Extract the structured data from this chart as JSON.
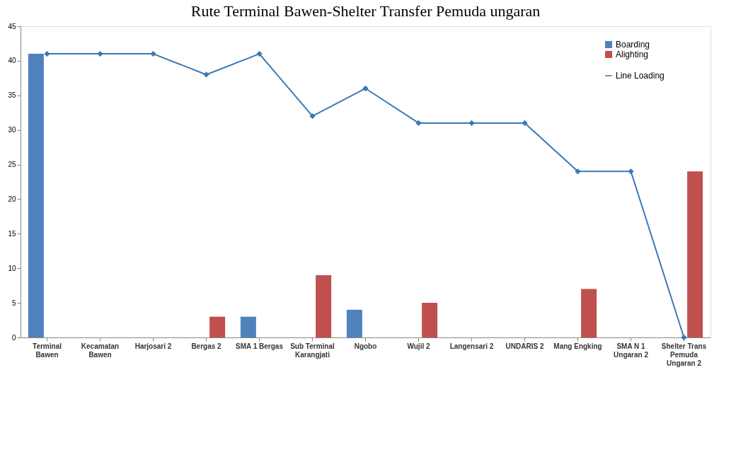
{
  "chart_data": {
    "type": "bar",
    "title": "Rute Terminal Bawen-Shelter Transfer Pemuda ungaran",
    "categories": [
      "Terminal\nBawen",
      "Kecamatan\nBawen",
      "Harjosari 2",
      "Bergas 2",
      "SMA 1 Bergas",
      "Sub Terminal\nKarangjati",
      "Ngobo",
      "Wujil 2",
      "Langensari 2",
      "UNDARIS 2",
      "Mang Engking",
      "SMA N 1\nUngaran 2",
      "Shelter Trans\nPemuda\nUngaran 2"
    ],
    "series": [
      {
        "name": "Boarding",
        "color": "#4f81bd",
        "values": [
          41,
          0,
          0,
          0,
          3,
          0,
          4,
          0,
          0,
          0,
          0,
          0,
          0
        ]
      },
      {
        "name": "Alighting",
        "color": "#c0504d",
        "values": [
          0,
          0,
          0,
          3,
          0,
          9,
          0,
          5,
          0,
          0,
          7,
          0,
          24
        ]
      },
      {
        "name": "Line Loading",
        "type": "line",
        "color": "#3c78b4",
        "marker": "diamond",
        "values": [
          41,
          41,
          41,
          38,
          41,
          32,
          36,
          31,
          31,
          31,
          24,
          24,
          0
        ]
      }
    ],
    "ylim": [
      0,
      45
    ],
    "yticks": [
      0,
      5,
      10,
      15,
      20,
      25,
      30,
      35,
      40,
      45
    ],
    "grid": false,
    "legend": "top right"
  }
}
